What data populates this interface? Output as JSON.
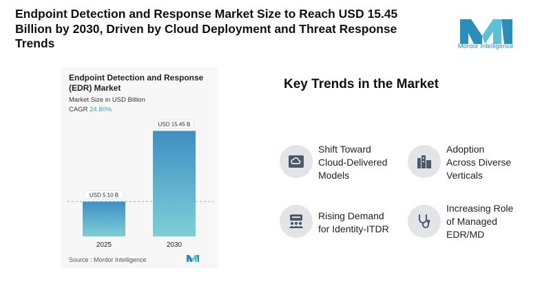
{
  "headline": "Endpoint Detection and Response Market Size to Reach USD 15.45 Billion by 2030, Driven by Cloud Deployment and Threat Response Trends",
  "brand": {
    "name": "Mordor Intelligence",
    "color": "#2a8fb8",
    "accent": "#5bc0d8"
  },
  "chart_data": {
    "type": "bar",
    "title": "Endpoint Detection and Response (EDR) Market",
    "subtitle": "Market Size in USD Billion",
    "cagr_label": "CAGR",
    "cagr_value": "24.80%",
    "categories": [
      "2025",
      "2030"
    ],
    "values": [
      5.1,
      15.45
    ],
    "data_labels": [
      "USD 5.10 B",
      "USD 15.45 B"
    ],
    "ylim": [
      0,
      16.5
    ],
    "source": "Source : Mordor Intelligence",
    "bar_colors": {
      "top": "#3f8fc4",
      "bottom": "#7fcfd8"
    }
  },
  "key_trends": {
    "title": "Key Trends in the Market",
    "items": [
      {
        "label": "Shift Toward Cloud-Delivered Models",
        "lines": [
          "Shift Toward",
          "Cloud-Delivered",
          "Models"
        ],
        "icon": "cloud-sync-icon"
      },
      {
        "label": "Adoption Across Diverse Verticals",
        "lines": [
          "Adoption",
          "Across Diverse",
          "Verticals"
        ],
        "icon": "buildings-icon"
      },
      {
        "label": "Rising Demand for Identity-ITDR",
        "lines": [
          "Rising Demand",
          "for Identity-ITDR"
        ],
        "icon": "identity-group-icon"
      },
      {
        "label": "Increasing Role of Managed EDR/MD",
        "lines": [
          "Increasing Role",
          "of Managed",
          "EDR/MD"
        ],
        "icon": "stethoscope-icon"
      }
    ]
  }
}
